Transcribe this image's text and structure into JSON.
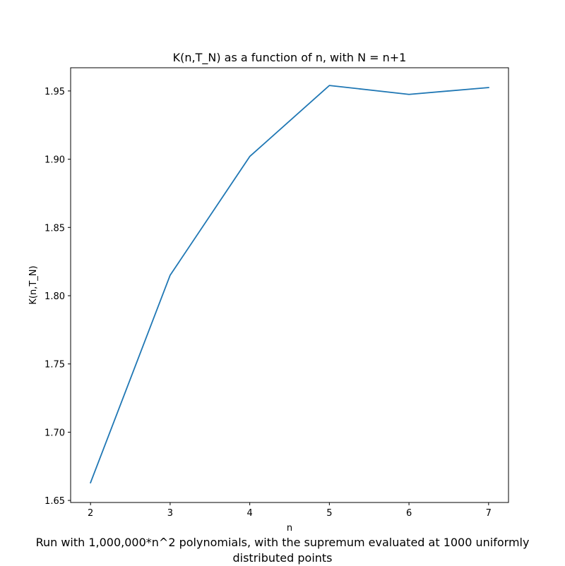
{
  "chart_data": {
    "type": "line",
    "title": "K(n,T_N) as a function of n, with N = n+1",
    "xlabel": "n",
    "ylabel": "K(n,T_N)",
    "x": [
      2,
      3,
      4,
      5,
      6,
      7
    ],
    "series": [
      {
        "values": [
          1.663,
          1.815,
          1.902,
          1.954,
          1.9475,
          1.9525
        ],
        "color": "#1f77b4"
      }
    ],
    "xticks": [
      2,
      3,
      4,
      5,
      6,
      7
    ],
    "xtick_labels": [
      "2",
      "3",
      "4",
      "5",
      "6",
      "7"
    ],
    "yticks": [
      1.65,
      1.7,
      1.75,
      1.8,
      1.85,
      1.9,
      1.95
    ],
    "ytick_labels": [
      "1.65",
      "1.70",
      "1.75",
      "1.80",
      "1.85",
      "1.90",
      "1.95"
    ],
    "xlim": [
      1.75,
      7.25
    ],
    "ylim": [
      1.6485,
      1.967
    ],
    "grid": false,
    "legend": "none"
  },
  "caption": {
    "line1": "Run with 1,000,000*n^2 polynomials, with the supremum evaluated at 1000 uniformly",
    "line2": "distributed points"
  }
}
